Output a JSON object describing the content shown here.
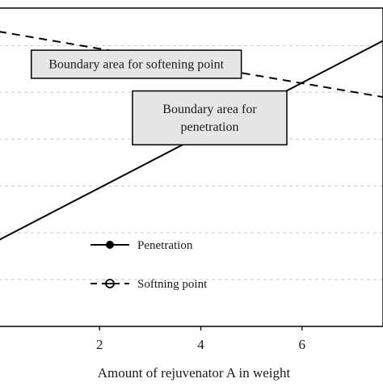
{
  "chart_data": {
    "type": "line",
    "xlabel": "Amount of rejuvenator A in weight",
    "ylabel": "",
    "xlim": [
      0,
      7.6
    ],
    "x_ticks": [
      2,
      4,
      6
    ],
    "y_ticks": [
      1,
      2,
      3,
      4,
      5,
      6
    ],
    "ylim": [
      0,
      6.8
    ],
    "grid": "horizontal dashed",
    "legend_position": "bottom-center",
    "series": [
      {
        "name": "Penetration",
        "style": "solid",
        "marker": "filled-circle",
        "x": [
          0,
          7.6
        ],
        "y": [
          1.84,
          6.1
        ]
      },
      {
        "name": "Softning point",
        "style": "dashed",
        "marker": "open-circle-with-line",
        "x": [
          0,
          7.6
        ],
        "y": [
          6.3,
          4.9
        ]
      }
    ],
    "annotations": [
      {
        "text": "Boundary area for softening point",
        "x_range": [
          0.65,
          4.8
        ],
        "y_range": [
          5.3,
          5.9
        ]
      },
      {
        "text_lines": [
          "Boundary area for",
          "penetration"
        ],
        "x_range": [
          2.65,
          5.7
        ],
        "y_range": [
          3.88,
          5.03
        ]
      }
    ],
    "colors": {
      "line": "#000000",
      "box_fill": "#e6e6e6",
      "grid": "#c8c8c8",
      "text": "#1a1a1a"
    }
  }
}
